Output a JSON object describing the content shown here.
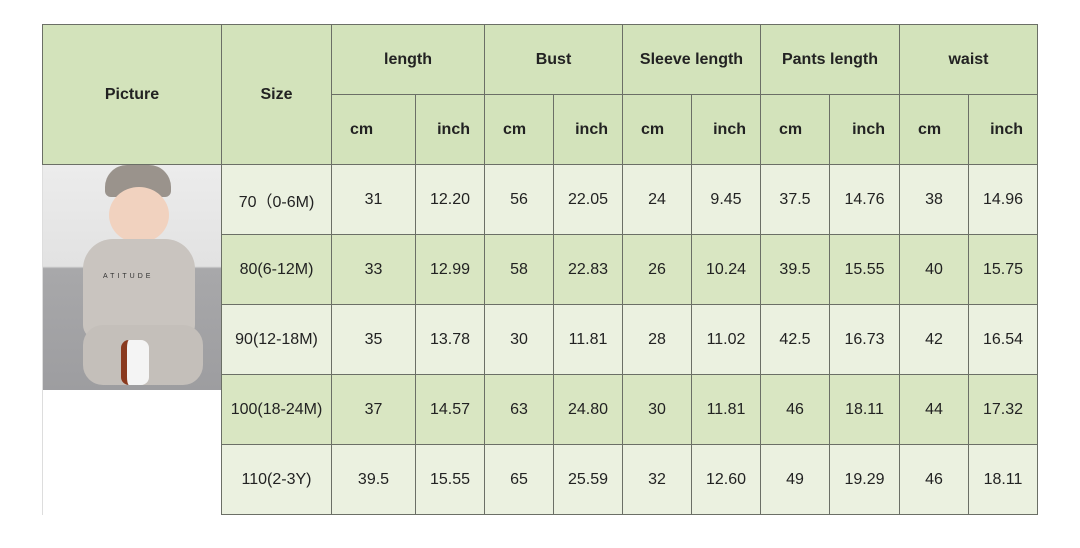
{
  "headers": {
    "picture": "Picture",
    "size": "Size",
    "groups": [
      "length",
      "Bust",
      "Sleeve length",
      "Pants length",
      "waist"
    ],
    "unit_cm": "cm",
    "unit_inch": "inch"
  },
  "photo": {
    "shirt_text": "ATITUDE"
  },
  "rows": [
    {
      "size": "70（0-6M)",
      "values": [
        "31",
        "12.20",
        "56",
        "22.05",
        "24",
        "9.45",
        "37.5",
        "14.76",
        "38",
        "14.96"
      ]
    },
    {
      "size": "80(6-12M)",
      "values": [
        "33",
        "12.99",
        "58",
        "22.83",
        "26",
        "10.24",
        "39.5",
        "15.55",
        "40",
        "15.75"
      ]
    },
    {
      "size": "90(12-18M)",
      "values": [
        "35",
        "13.78",
        "30",
        "11.81",
        "28",
        "11.02",
        "42.5",
        "16.73",
        "42",
        "16.54"
      ]
    },
    {
      "size": "100(18-24M)",
      "values": [
        "37",
        "14.57",
        "63",
        "24.80",
        "30",
        "11.81",
        "46",
        "18.11",
        "44",
        "17.32"
      ]
    },
    {
      "size": "110(2-3Y)",
      "values": [
        "39.5",
        "15.55",
        "65",
        "25.59",
        "32",
        "12.60",
        "49",
        "19.29",
        "46",
        "18.11"
      ]
    }
  ],
  "colors": {
    "header": "#d3e3bb",
    "row_light": "#ebf1e0",
    "row_dark": "#d9e6c2"
  }
}
